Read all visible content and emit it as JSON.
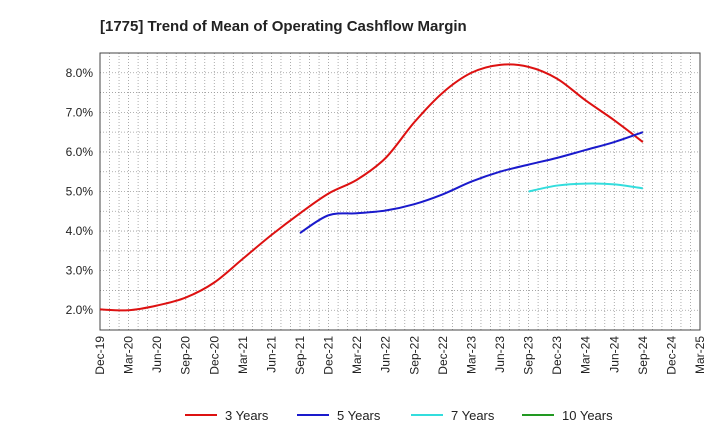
{
  "chart_data": {
    "type": "line",
    "title": "[1775]  Trend of Mean of Operating Cashflow Margin",
    "xlabel": "",
    "ylabel": "",
    "x_ticks": [
      "Dec-19",
      "Mar-20",
      "Jun-20",
      "Sep-20",
      "Dec-20",
      "Mar-21",
      "Jun-21",
      "Sep-21",
      "Dec-21",
      "Mar-22",
      "Jun-22",
      "Sep-22",
      "Dec-22",
      "Mar-23",
      "Jun-23",
      "Sep-23",
      "Dec-23",
      "Mar-24",
      "Jun-24",
      "Sep-24",
      "Dec-24",
      "Mar-25"
    ],
    "y_ticks": [
      "2.0%",
      "3.0%",
      "4.0%",
      "5.0%",
      "6.0%",
      "7.0%",
      "8.0%"
    ],
    "ylim": [
      1.5,
      8.5
    ],
    "y_unit": "%",
    "grid": true,
    "legend_position": "bottom",
    "series": [
      {
        "name": "3 Years",
        "color": "#dd1111",
        "x": [
          "Dec-19",
          "Mar-20",
          "Jun-20",
          "Sep-20",
          "Dec-20",
          "Mar-21",
          "Jun-21",
          "Sep-21",
          "Dec-21",
          "Mar-22",
          "Jun-22",
          "Sep-22",
          "Dec-22",
          "Mar-23",
          "Jun-23",
          "Sep-23",
          "Dec-23",
          "Mar-24",
          "Jun-24",
          "Sep-24"
        ],
        "values": [
          2.02,
          2.0,
          2.12,
          2.32,
          2.7,
          3.3,
          3.9,
          4.45,
          4.95,
          5.3,
          5.85,
          6.75,
          7.5,
          8.0,
          8.2,
          8.15,
          7.85,
          7.3,
          6.8,
          6.25
        ]
      },
      {
        "name": "5 Years",
        "color": "#1a1acc",
        "x": [
          "Sep-21",
          "Dec-21",
          "Mar-22",
          "Jun-22",
          "Sep-22",
          "Dec-22",
          "Mar-23",
          "Jun-23",
          "Sep-23",
          "Dec-23",
          "Mar-24",
          "Jun-24",
          "Sep-24"
        ],
        "values": [
          3.95,
          4.4,
          4.45,
          4.52,
          4.68,
          4.93,
          5.25,
          5.5,
          5.68,
          5.85,
          6.05,
          6.25,
          6.5
        ]
      },
      {
        "name": "7 Years",
        "color": "#33dddd",
        "x": [
          "Sep-23",
          "Dec-23",
          "Mar-24",
          "Jun-24",
          "Sep-24"
        ],
        "values": [
          5.0,
          5.15,
          5.2,
          5.18,
          5.08
        ]
      },
      {
        "name": "10 Years",
        "color": "#229922",
        "x": [],
        "values": []
      }
    ]
  }
}
